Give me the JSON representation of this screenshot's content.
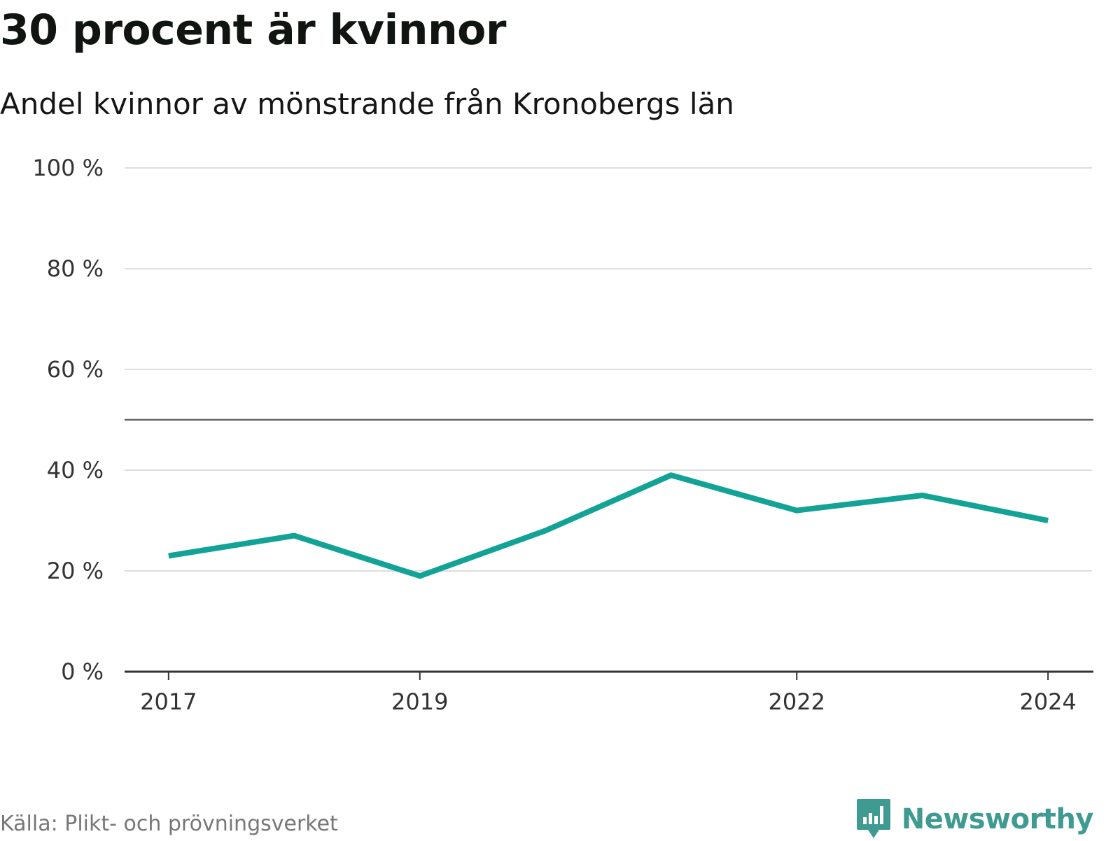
{
  "title": "30 procent är kvinnor",
  "subtitle": "Andel kvinnor av mönstrande från Kronobergs län",
  "source": "Källa: Plikt- och prövningsverket",
  "brand": "Newsworthy",
  "colors": {
    "line": "#13a396",
    "grid": "#dddddd",
    "reference": "#666666",
    "axis": "#333333",
    "brand": "#3f9a92"
  },
  "chart_data": {
    "type": "line",
    "title": "30 procent är kvinnor",
    "subtitle": "Andel kvinnor av mönstrande från Kronobergs län",
    "xlabel": "",
    "ylabel": "",
    "x": [
      2017,
      2018,
      2019,
      2020,
      2021,
      2022,
      2023,
      2024
    ],
    "series": [
      {
        "name": "Andel kvinnor",
        "values": [
          23,
          27,
          19,
          28,
          39,
          32,
          35,
          30
        ]
      }
    ],
    "ylim": [
      0,
      100
    ],
    "xlim": [
      2016.65,
      2024.35
    ],
    "y_ticks": [
      0,
      20,
      40,
      60,
      80,
      100
    ],
    "y_tick_labels": [
      "0 %",
      "20 %",
      "40 %",
      "60 %",
      "80 %",
      "100 %"
    ],
    "x_ticks": [
      2017,
      2019,
      2022,
      2024
    ],
    "x_tick_labels": [
      "2017",
      "2019",
      "2022",
      "2024"
    ],
    "reference_line": 50,
    "grid": true
  }
}
